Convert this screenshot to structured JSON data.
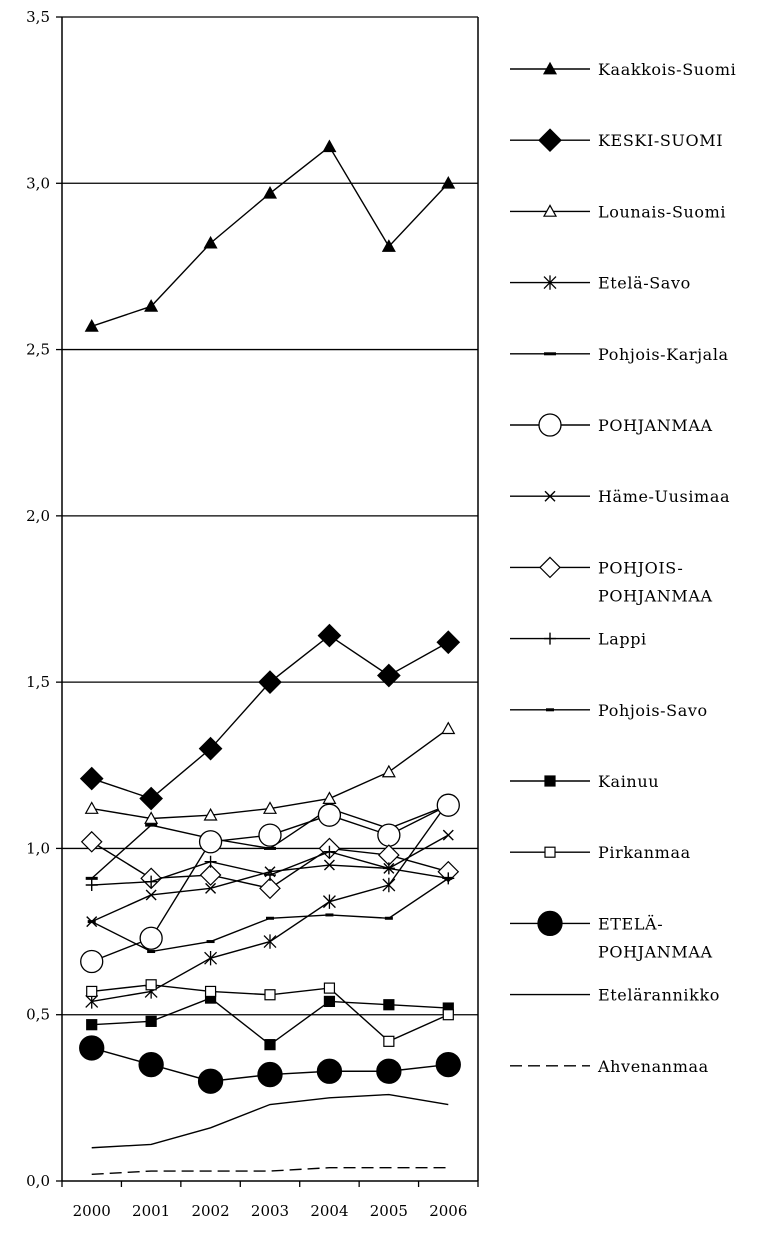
{
  "chart_data": {
    "type": "line",
    "title": "",
    "xlabel": "",
    "ylabel": "",
    "categories": [
      "2000",
      "2001",
      "2002",
      "2003",
      "2004",
      "2005",
      "2006"
    ],
    "y_ticks": [
      "0,0",
      "0,5",
      "1,0",
      "1,5",
      "2,0",
      "2,5",
      "3,0",
      "3,5"
    ],
    "ylim": [
      0,
      3.5
    ],
    "grid": "horizontal gridlines at 0.5, 1.0, 1.5, 2.0, 2.5, 3.0",
    "legend_position": "right",
    "series": [
      {
        "name": "Kaakkois-Suomi",
        "label_lines": [
          "Kaakkois-Suomi"
        ],
        "marker": "triangle-filled",
        "markerSize": 6,
        "dash": "",
        "values": [
          2.57,
          2.63,
          2.82,
          2.97,
          3.11,
          2.81,
          3.0
        ]
      },
      {
        "name": "KESKI-SUOMI",
        "label_lines": [
          "KESKI-SUOMI"
        ],
        "marker": "diamond-filled",
        "markerSize": 11,
        "dash": "",
        "values": [
          1.21,
          1.15,
          1.3,
          1.5,
          1.64,
          1.52,
          1.62
        ]
      },
      {
        "name": "Lounais-Suomi",
        "label_lines": [
          "Lounais-Suomi"
        ],
        "marker": "triangle-open",
        "markerSize": 6,
        "dash": "",
        "values": [
          1.12,
          1.09,
          1.1,
          1.12,
          1.15,
          1.23,
          1.36
        ]
      },
      {
        "name": "Etelä-Savo",
        "label_lines": [
          "Etelä-Savo"
        ],
        "marker": "asterisk",
        "markerSize": 6,
        "dash": "",
        "values": [
          0.54,
          0.57,
          0.67,
          0.72,
          0.84,
          0.89,
          1.14
        ]
      },
      {
        "name": "Pohjois-Karjala",
        "label_lines": [
          "Pohjois-Karjala"
        ],
        "marker": "dash",
        "markerSize": 6,
        "dash": "",
        "values": [
          0.91,
          1.07,
          1.03,
          1.0,
          1.12,
          1.06,
          1.13
        ]
      },
      {
        "name": "POHJANMAA",
        "label_lines": [
          "POHJANMAA"
        ],
        "marker": "circle-open",
        "markerSize": 11,
        "dash": "",
        "values": [
          0.66,
          0.73,
          1.02,
          1.04,
          1.1,
          1.04,
          1.13
        ]
      },
      {
        "name": "Häme-Uusimaa",
        "label_lines": [
          "Häme-Uusimaa"
        ],
        "marker": "x",
        "markerSize": 5,
        "dash": "",
        "values": [
          0.78,
          0.86,
          0.88,
          0.93,
          0.95,
          0.94,
          1.04
        ]
      },
      {
        "name": "POHJOIS-POHJANMAA",
        "label_lines": [
          "POHJOIS-",
          "POHJANMAA"
        ],
        "marker": "diamond-open",
        "markerSize": 10,
        "dash": "",
        "values": [
          1.02,
          0.91,
          0.92,
          0.88,
          1.0,
          0.98,
          0.93
        ]
      },
      {
        "name": "Lappi",
        "label_lines": [
          "Lappi"
        ],
        "marker": "plus",
        "markerSize": 6,
        "dash": "",
        "values": [
          0.89,
          0.9,
          0.96,
          0.92,
          0.99,
          0.94,
          0.91
        ]
      },
      {
        "name": "Pohjois-Savo",
        "label_lines": [
          "Pohjois-Savo"
        ],
        "marker": "small-dash",
        "markerSize": 4,
        "dash": "",
        "values": [
          0.78,
          0.69,
          0.72,
          0.79,
          0.8,
          0.79,
          0.91
        ]
      },
      {
        "name": "Kainuu",
        "label_lines": [
          "Kainuu"
        ],
        "marker": "square-filled",
        "markerSize": 5,
        "dash": "",
        "values": [
          0.47,
          0.48,
          0.55,
          0.41,
          0.54,
          0.53,
          0.52
        ]
      },
      {
        "name": "Pirkanmaa",
        "label_lines": [
          "Pirkanmaa"
        ],
        "marker": "square-open",
        "markerSize": 5,
        "dash": "",
        "values": [
          0.57,
          0.59,
          0.57,
          0.56,
          0.58,
          0.42,
          0.5
        ]
      },
      {
        "name": "ETELÄ-POHJANMAA",
        "label_lines": [
          "ETELÄ-",
          "POHJANMAA"
        ],
        "marker": "circle-filled",
        "markerSize": 12,
        "dash": "",
        "values": [
          0.4,
          0.35,
          0.3,
          0.32,
          0.33,
          0.33,
          0.35
        ]
      },
      {
        "name": "Etelärannikko",
        "label_lines": [
          "Etelärannikko"
        ],
        "marker": "none",
        "markerSize": 0,
        "dash": "",
        "values": [
          0.1,
          0.11,
          0.16,
          0.23,
          0.25,
          0.26,
          0.23
        ]
      },
      {
        "name": "Ahvenanmaa",
        "label_lines": [
          "Ahvenanmaa"
        ],
        "marker": "none",
        "markerSize": 0,
        "dash": "12,6",
        "values": [
          0.02,
          0.03,
          0.03,
          0.03,
          0.04,
          0.04,
          0.04
        ]
      }
    ]
  }
}
